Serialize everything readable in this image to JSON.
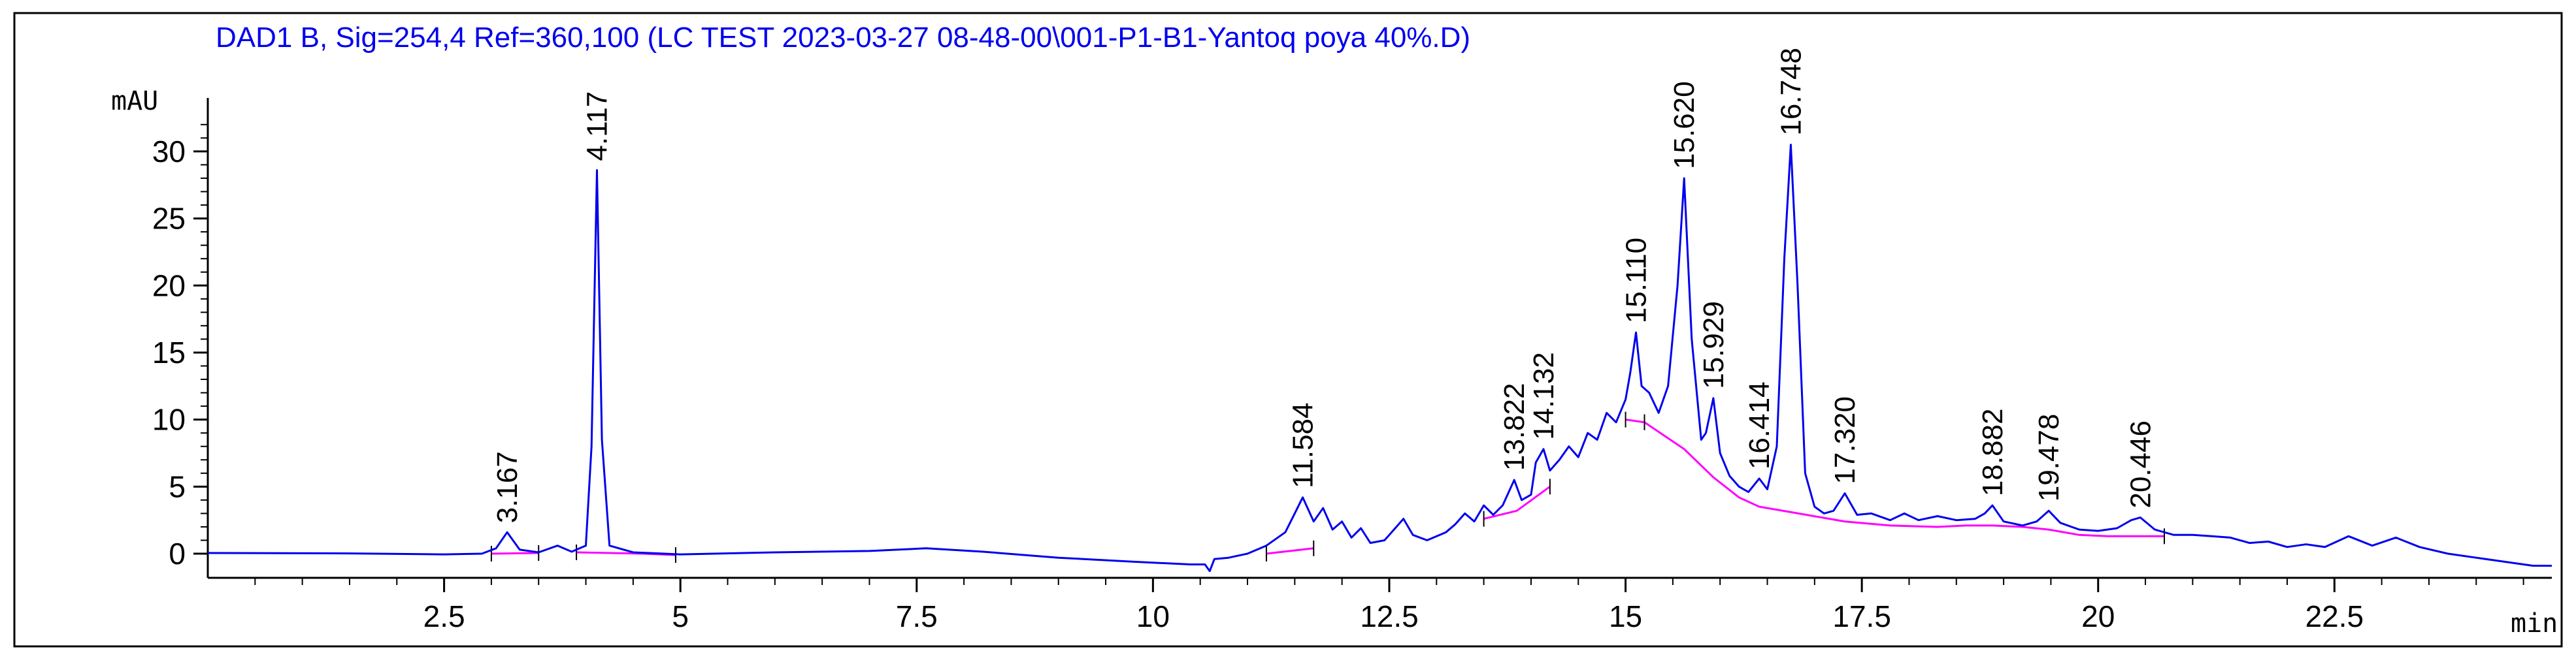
{
  "chart_data": {
    "type": "line",
    "title": "DAD1 B, Sig=254,4 Ref=360,100 (LC TEST 2023-03-27 08-48-00\\001-P1-B1-Yantoq poya 40%.D)",
    "ylabel": "mAU",
    "xlabel": "min",
    "xlim": [
      0,
      24.8
    ],
    "ylim": [
      -1.8,
      33.5
    ],
    "grid": false,
    "x_ticks": [
      2.5,
      5,
      7.5,
      10,
      12.5,
      15,
      17.5,
      20,
      22.5
    ],
    "x_tick_labels": [
      "2.5",
      "5",
      "7.5",
      "10",
      "12.5",
      "15",
      "17.5",
      "20",
      "22.5"
    ],
    "y_ticks": [
      0,
      5,
      10,
      15,
      20,
      25,
      30
    ],
    "y_tick_labels": [
      "0",
      "5",
      "10",
      "15",
      "20",
      "25",
      "30"
    ],
    "colors": {
      "signal": "#0000ee",
      "baseline": "#ff00ff",
      "frame": "#000000",
      "title": "#0000ee"
    },
    "peaks": [
      {
        "rt": 3.167,
        "label": "3.167",
        "height": 1.6
      },
      {
        "rt": 4.117,
        "label": "4.117",
        "height": 28.6
      },
      {
        "rt": 11.584,
        "label": "11.584",
        "height": 4.2
      },
      {
        "rt": 13.822,
        "label": "13.822",
        "height": 5.5
      },
      {
        "rt": 14.132,
        "label": "14.132",
        "height": 7.8
      },
      {
        "rt": 15.11,
        "label": "15.110",
        "height": 16.5
      },
      {
        "rt": 15.62,
        "label": "15.620",
        "height": 28.0
      },
      {
        "rt": 15.929,
        "label": "15.929",
        "height": 11.6
      },
      {
        "rt": 16.414,
        "label": "16.414",
        "height": 5.6
      },
      {
        "rt": 16.748,
        "label": "16.748",
        "height": 30.5
      },
      {
        "rt": 17.32,
        "label": "17.320",
        "height": 4.5
      },
      {
        "rt": 18.882,
        "label": "18.882",
        "height": 3.6
      },
      {
        "rt": 19.478,
        "label": "19.478",
        "height": 3.2
      },
      {
        "rt": 20.446,
        "label": "20.446",
        "height": 2.7
      }
    ],
    "signal_trace": [
      [
        0.0,
        0.05
      ],
      [
        1.5,
        0.02
      ],
      [
        2.5,
        -0.05
      ],
      [
        2.9,
        0.0
      ],
      [
        3.05,
        0.4
      ],
      [
        3.167,
        1.6
      ],
      [
        3.3,
        0.3
      ],
      [
        3.5,
        0.1
      ],
      [
        3.7,
        0.6
      ],
      [
        3.85,
        0.15
      ],
      [
        4.0,
        0.6
      ],
      [
        4.06,
        8.0
      ],
      [
        4.117,
        28.6
      ],
      [
        4.17,
        8.5
      ],
      [
        4.25,
        0.6
      ],
      [
        4.5,
        0.1
      ],
      [
        5.0,
        -0.05
      ],
      [
        6.0,
        0.1
      ],
      [
        7.0,
        0.2
      ],
      [
        7.6,
        0.4
      ],
      [
        8.2,
        0.15
      ],
      [
        9.0,
        -0.3
      ],
      [
        9.8,
        -0.6
      ],
      [
        10.4,
        -0.8
      ],
      [
        10.55,
        -0.8
      ],
      [
        10.6,
        -1.3
      ],
      [
        10.65,
        -0.4
      ],
      [
        10.8,
        -0.3
      ],
      [
        11.0,
        0.0
      ],
      [
        11.2,
        0.6
      ],
      [
        11.4,
        1.6
      ],
      [
        11.5,
        3.0
      ],
      [
        11.584,
        4.2
      ],
      [
        11.7,
        2.4
      ],
      [
        11.8,
        3.4
      ],
      [
        11.9,
        1.8
      ],
      [
        12.0,
        2.4
      ],
      [
        12.1,
        1.2
      ],
      [
        12.2,
        1.9
      ],
      [
        12.3,
        0.8
      ],
      [
        12.45,
        1.0
      ],
      [
        12.55,
        1.8
      ],
      [
        12.65,
        2.6
      ],
      [
        12.75,
        1.4
      ],
      [
        12.9,
        1.0
      ],
      [
        13.1,
        1.6
      ],
      [
        13.2,
        2.2
      ],
      [
        13.3,
        3.0
      ],
      [
        13.4,
        2.4
      ],
      [
        13.5,
        3.6
      ],
      [
        13.6,
        2.9
      ],
      [
        13.7,
        3.6
      ],
      [
        13.822,
        5.5
      ],
      [
        13.9,
        4.0
      ],
      [
        14.0,
        4.4
      ],
      [
        14.05,
        6.8
      ],
      [
        14.132,
        7.8
      ],
      [
        14.2,
        6.2
      ],
      [
        14.3,
        7.0
      ],
      [
        14.4,
        8.0
      ],
      [
        14.5,
        7.2
      ],
      [
        14.6,
        9.0
      ],
      [
        14.7,
        8.5
      ],
      [
        14.8,
        10.5
      ],
      [
        14.9,
        9.8
      ],
      [
        15.0,
        11.5
      ],
      [
        15.05,
        13.5
      ],
      [
        15.11,
        16.5
      ],
      [
        15.17,
        12.5
      ],
      [
        15.25,
        12.0
      ],
      [
        15.35,
        10.5
      ],
      [
        15.45,
        12.5
      ],
      [
        15.55,
        20.0
      ],
      [
        15.62,
        28.0
      ],
      [
        15.7,
        16.0
      ],
      [
        15.8,
        8.5
      ],
      [
        15.85,
        9.0
      ],
      [
        15.929,
        11.6
      ],
      [
        16.0,
        7.5
      ],
      [
        16.1,
        5.8
      ],
      [
        16.2,
        5.0
      ],
      [
        16.3,
        4.6
      ],
      [
        16.414,
        5.6
      ],
      [
        16.5,
        4.8
      ],
      [
        16.6,
        8.0
      ],
      [
        16.68,
        22.0
      ],
      [
        16.748,
        30.5
      ],
      [
        16.82,
        20.0
      ],
      [
        16.9,
        6.0
      ],
      [
        17.0,
        3.5
      ],
      [
        17.1,
        3.0
      ],
      [
        17.2,
        3.2
      ],
      [
        17.32,
        4.5
      ],
      [
        17.45,
        2.9
      ],
      [
        17.6,
        3.0
      ],
      [
        17.8,
        2.5
      ],
      [
        17.95,
        3.0
      ],
      [
        18.1,
        2.5
      ],
      [
        18.3,
        2.8
      ],
      [
        18.5,
        2.5
      ],
      [
        18.7,
        2.6
      ],
      [
        18.8,
        3.0
      ],
      [
        18.882,
        3.6
      ],
      [
        19.0,
        2.4
      ],
      [
        19.2,
        2.1
      ],
      [
        19.35,
        2.4
      ],
      [
        19.478,
        3.2
      ],
      [
        19.6,
        2.3
      ],
      [
        19.8,
        1.8
      ],
      [
        20.0,
        1.7
      ],
      [
        20.2,
        1.9
      ],
      [
        20.35,
        2.5
      ],
      [
        20.446,
        2.7
      ],
      [
        20.6,
        1.8
      ],
      [
        20.8,
        1.4
      ],
      [
        21.0,
        1.4
      ],
      [
        21.2,
        1.3
      ],
      [
        21.4,
        1.2
      ],
      [
        21.6,
        0.8
      ],
      [
        21.8,
        0.9
      ],
      [
        22.0,
        0.5
      ],
      [
        22.2,
        0.7
      ],
      [
        22.4,
        0.5
      ],
      [
        22.65,
        1.3
      ],
      [
        22.9,
        0.6
      ],
      [
        23.15,
        1.2
      ],
      [
        23.4,
        0.5
      ],
      [
        23.7,
        0.0
      ],
      [
        24.0,
        -0.3
      ],
      [
        24.3,
        -0.6
      ],
      [
        24.6,
        -0.9
      ],
      [
        24.8,
        -0.9
      ]
    ],
    "baseline_segments": [
      [
        [
          3.0,
          0.0
        ],
        [
          3.5,
          0.05
        ]
      ],
      [
        [
          3.9,
          0.1
        ],
        [
          4.6,
          0.0
        ],
        [
          4.95,
          -0.1
        ]
      ],
      [
        [
          11.2,
          0.0
        ],
        [
          11.7,
          0.4
        ]
      ],
      [
        [
          13.5,
          2.6
        ],
        [
          13.85,
          3.2
        ],
        [
          14.2,
          5.0
        ]
      ],
      [
        [
          15.0,
          10.0
        ],
        [
          15.2,
          9.8
        ]
      ],
      [
        [
          15.2,
          9.8
        ],
        [
          15.62,
          7.8
        ],
        [
          15.929,
          5.7
        ],
        [
          16.2,
          4.2
        ],
        [
          16.414,
          3.5
        ],
        [
          16.748,
          3.1
        ],
        [
          17.32,
          2.4
        ],
        [
          17.8,
          2.1
        ],
        [
          18.3,
          2.0
        ],
        [
          18.6,
          2.1
        ],
        [
          18.882,
          2.1
        ],
        [
          19.2,
          2.0
        ],
        [
          19.478,
          1.8
        ],
        [
          19.8,
          1.4
        ],
        [
          20.1,
          1.3
        ],
        [
          20.7,
          1.3
        ]
      ]
    ]
  }
}
